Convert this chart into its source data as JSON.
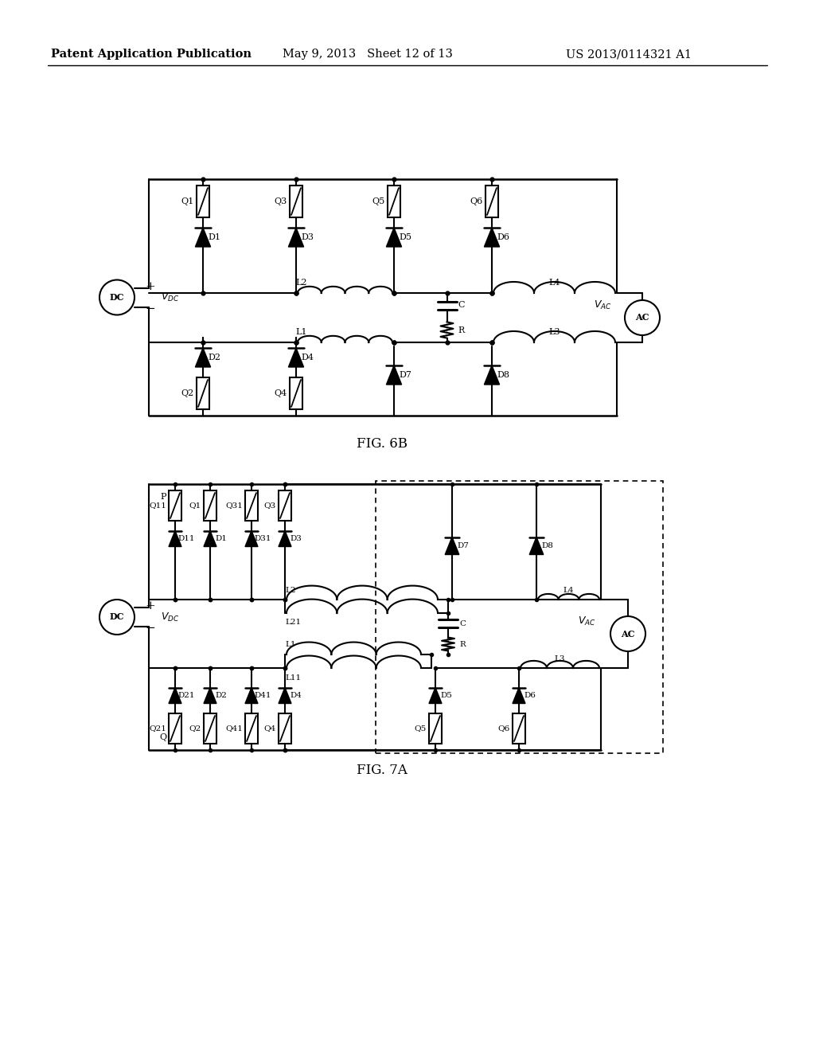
{
  "background_color": "#ffffff",
  "header_left": "Patent Application Publication",
  "header_center": "May 9, 2013   Sheet 12 of 13",
  "header_right": "US 2013/0114321 A1",
  "fig6b_label": "FIG. 6B",
  "fig7a_label": "FIG. 7A"
}
